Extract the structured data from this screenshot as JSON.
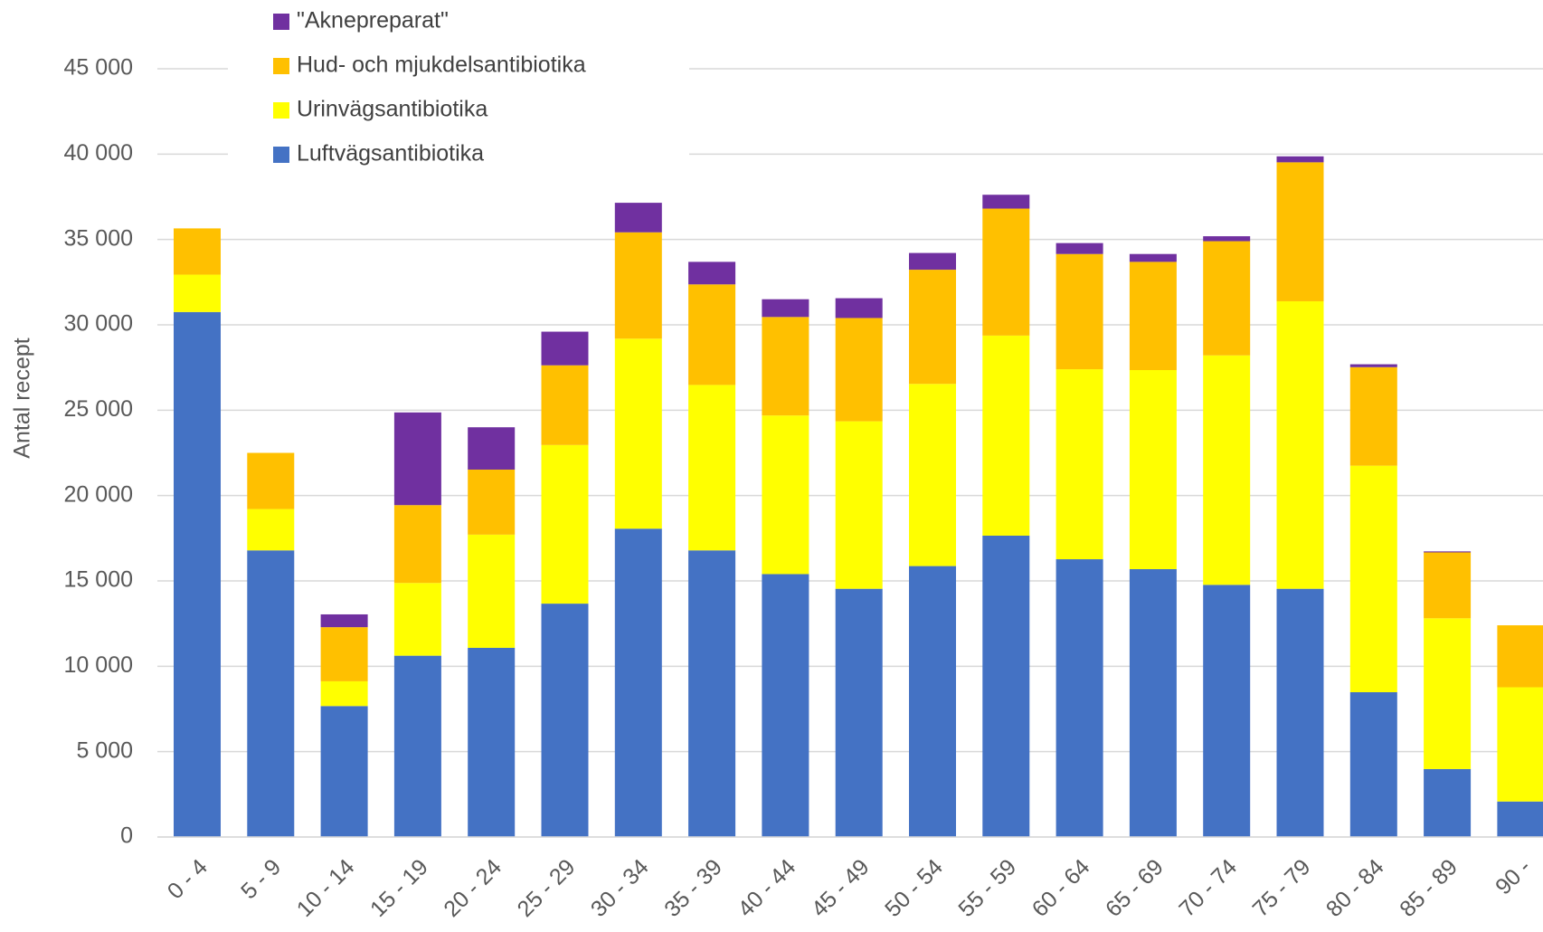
{
  "chart_data": {
    "type": "stacked_bar",
    "y_label": "Antal recept",
    "categories": [
      "0 - 4",
      "5 - 9",
      "10 - 14",
      "15 - 19",
      "20 - 24",
      "25 - 29",
      "30 - 34",
      "35 - 39",
      "40 - 44",
      "45 - 49",
      "50 - 54",
      "55 - 59",
      "60 - 64",
      "65 - 69",
      "70 - 74",
      "75 - 79",
      "80 - 84",
      "85 - 89",
      "90 -"
    ],
    "series": [
      {
        "name": "Luftvägsantibiotika",
        "color": "#4472c4",
        "values": [
          30750,
          16790,
          7670,
          10620,
          11080,
          13670,
          18060,
          16790,
          15400,
          14540,
          15870,
          17650,
          16270,
          15690,
          14770,
          14540,
          8480,
          3980,
          2080
        ]
      },
      {
        "name": "Urinvägsantibiotika",
        "color": "#ffff00",
        "values": [
          2190,
          2420,
          1450,
          4260,
          6630,
          9290,
          11130,
          9690,
          9290,
          9810,
          10670,
          11720,
          11130,
          11660,
          13440,
          16840,
          13270,
          8830,
          6690
        ]
      },
      {
        "name": "Hud- och  mjukdelsantibiotika",
        "color": "#ffc000",
        "values": [
          2710,
          3290,
          3170,
          4560,
          3810,
          4670,
          6230,
          5890,
          5770,
          6050,
          6690,
          7440,
          6750,
          6340,
          6690,
          8140,
          5770,
          3860,
          3630
        ]
      },
      {
        "name": "\"Aknepreparat\"",
        "color": "#7030a0",
        "values": [
          0,
          0,
          750,
          5430,
          2480,
          1970,
          1730,
          1320,
          1040,
          1160,
          980,
          810,
          640,
          460,
          290,
          350,
          170,
          60,
          0
        ]
      }
    ],
    "ylim": [
      0,
      45000
    ],
    "yticks": [
      0,
      {
        "value": 5000,
        "label": "5 000"
      },
      {
        "value": 10000,
        "label": "10 000"
      },
      {
        "value": 15000,
        "label": "15 000"
      },
      {
        "value": 20000,
        "label": "20 000"
      },
      {
        "value": 25000,
        "label": "25 000"
      },
      {
        "value": 30000,
        "label": "30 000"
      },
      {
        "value": 35000,
        "label": "35 000"
      },
      {
        "value": 40000,
        "label": "40 000"
      },
      {
        "value": 45000,
        "label": "45 000"
      }
    ],
    "grid": true,
    "legend": "top-left"
  }
}
